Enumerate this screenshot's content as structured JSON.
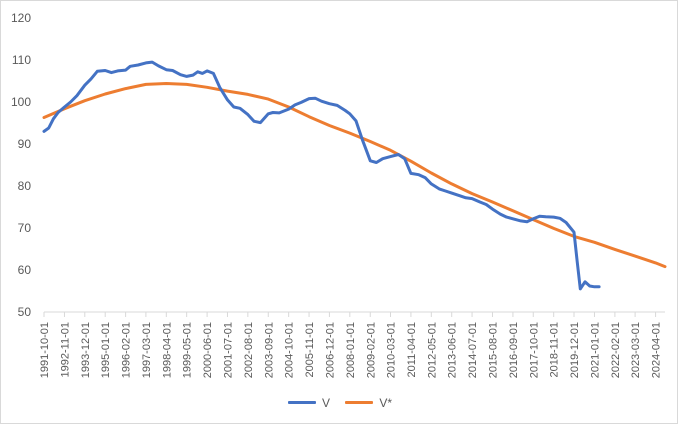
{
  "chart_data": {
    "type": "line",
    "title": "",
    "xlabel": "",
    "ylabel": "",
    "ylim": [
      50,
      120
    ],
    "yticks": [
      50,
      60,
      70,
      80,
      90,
      100,
      110,
      120
    ],
    "grid": false,
    "legend_position": "bottom",
    "x_tick_labels": [
      "1991-10-01",
      "1992-11-01",
      "1993-12-01",
      "1995-01-01",
      "1996-02-01",
      "1997-03-01",
      "1998-04-01",
      "1999-05-01",
      "2000-06-01",
      "2001-07-01",
      "2002-08-01",
      "2003-09-01",
      "2004-10-01",
      "2005-11-01",
      "2006-12-01",
      "2008-01-01",
      "2009-02-01",
      "2010-03-01",
      "2011-04-01",
      "2012-05-01",
      "2013-06-01",
      "2014-07-01",
      "2015-08-01",
      "2016-09-01",
      "2017-10-01",
      "2018-11-01",
      "2019-12-01",
      "2021-01-01",
      "2022-02-01",
      "2023-03-01",
      "2024-04-01"
    ],
    "series": [
      {
        "name": "V",
        "color": "#4472C4",
        "points": [
          [
            "1991-10-01",
            93.0
          ],
          [
            "1992-01-01",
            93.8
          ],
          [
            "1992-04-01",
            96.0
          ],
          [
            "1992-07-01",
            97.5
          ],
          [
            "1992-11-01",
            98.8
          ],
          [
            "1993-03-01",
            100.0
          ],
          [
            "1993-07-01",
            101.5
          ],
          [
            "1993-12-01",
            104.0
          ],
          [
            "1994-04-01",
            105.5
          ],
          [
            "1994-08-01",
            107.3
          ],
          [
            "1995-01-01",
            107.5
          ],
          [
            "1995-05-01",
            107.0
          ],
          [
            "1995-09-01",
            107.4
          ],
          [
            "1996-02-01",
            107.6
          ],
          [
            "1996-05-01",
            108.5
          ],
          [
            "1996-10-01",
            108.8
          ],
          [
            "1997-03-01",
            109.3
          ],
          [
            "1997-07-01",
            109.5
          ],
          [
            "1997-11-01",
            108.6
          ],
          [
            "1998-04-01",
            107.7
          ],
          [
            "1998-08-01",
            107.5
          ],
          [
            "1999-01-01",
            106.5
          ],
          [
            "1999-05-01",
            106.1
          ],
          [
            "1999-09-01",
            106.4
          ],
          [
            "1999-12-01",
            107.2
          ],
          [
            "2000-03-01",
            106.8
          ],
          [
            "2000-06-01",
            107.4
          ],
          [
            "2000-10-01",
            106.8
          ],
          [
            "2001-02-01",
            103.5
          ],
          [
            "2001-07-01",
            100.5
          ],
          [
            "2001-11-01",
            98.8
          ],
          [
            "2002-03-01",
            98.5
          ],
          [
            "2002-08-01",
            97.0
          ],
          [
            "2002-12-01",
            95.4
          ],
          [
            "2003-04-01",
            95.1
          ],
          [
            "2003-09-01",
            97.2
          ],
          [
            "2003-12-01",
            97.5
          ],
          [
            "2004-04-01",
            97.4
          ],
          [
            "2004-10-01",
            98.3
          ],
          [
            "2005-02-01",
            99.3
          ],
          [
            "2005-06-01",
            99.9
          ],
          [
            "2005-11-01",
            100.8
          ],
          [
            "2006-03-01",
            100.9
          ],
          [
            "2006-07-01",
            100.2
          ],
          [
            "2006-12-01",
            99.6
          ],
          [
            "2007-05-01",
            99.2
          ],
          [
            "2007-10-01",
            98.0
          ],
          [
            "2008-01-01",
            97.2
          ],
          [
            "2008-05-01",
            95.5
          ],
          [
            "2008-09-01",
            91.0
          ],
          [
            "2009-02-01",
            86.0
          ],
          [
            "2009-06-01",
            85.6
          ],
          [
            "2009-10-01",
            86.5
          ],
          [
            "2010-03-01",
            87.0
          ],
          [
            "2010-08-01",
            87.5
          ],
          [
            "2010-12-01",
            86.5
          ],
          [
            "2011-04-01",
            83.0
          ],
          [
            "2011-09-01",
            82.7
          ],
          [
            "2012-01-01",
            82.0
          ],
          [
            "2012-05-01",
            80.5
          ],
          [
            "2012-10-01",
            79.3
          ],
          [
            "2013-02-01",
            78.8
          ],
          [
            "2013-06-01",
            78.3
          ],
          [
            "2013-11-01",
            77.7
          ],
          [
            "2014-03-01",
            77.2
          ],
          [
            "2014-07-01",
            77.0
          ],
          [
            "2014-12-01",
            76.2
          ],
          [
            "2015-04-01",
            75.6
          ],
          [
            "2015-08-01",
            74.5
          ],
          [
            "2016-01-01",
            73.3
          ],
          [
            "2016-05-01",
            72.6
          ],
          [
            "2016-09-01",
            72.2
          ],
          [
            "2017-02-01",
            71.7
          ],
          [
            "2017-06-01",
            71.5
          ],
          [
            "2017-10-01",
            72.2
          ],
          [
            "2018-02-01",
            72.8
          ],
          [
            "2018-06-01",
            72.7
          ],
          [
            "2018-11-01",
            72.6
          ],
          [
            "2019-03-01",
            72.3
          ],
          [
            "2019-07-01",
            71.3
          ],
          [
            "2019-12-01",
            69.0
          ],
          [
            "2020-02-01",
            62.0
          ],
          [
            "2020-04-01",
            55.5
          ],
          [
            "2020-07-01",
            57.2
          ],
          [
            "2020-10-01",
            56.2
          ],
          [
            "2021-01-01",
            56.0
          ],
          [
            "2021-04-01",
            56.0
          ]
        ]
      },
      {
        "name": "V*",
        "color": "#ED7D31",
        "points": [
          [
            "1991-10-01",
            96.3
          ],
          [
            "1992-11-01",
            98.4
          ],
          [
            "1993-12-01",
            100.3
          ],
          [
            "1995-01-01",
            101.9
          ],
          [
            "1996-02-01",
            103.2
          ],
          [
            "1997-03-01",
            104.2
          ],
          [
            "1998-04-01",
            104.4
          ],
          [
            "1999-05-01",
            104.2
          ],
          [
            "2000-06-01",
            103.5
          ],
          [
            "2001-07-01",
            102.6
          ],
          [
            "2002-08-01",
            101.8
          ],
          [
            "2003-09-01",
            100.7
          ],
          [
            "2004-10-01",
            98.8
          ],
          [
            "2005-11-01",
            96.5
          ],
          [
            "2006-12-01",
            94.4
          ],
          [
            "2008-01-01",
            92.6
          ],
          [
            "2009-02-01",
            90.6
          ],
          [
            "2010-03-01",
            88.5
          ],
          [
            "2011-04-01",
            85.9
          ],
          [
            "2012-05-01",
            83.1
          ],
          [
            "2013-06-01",
            80.5
          ],
          [
            "2014-07-01",
            78.2
          ],
          [
            "2015-08-01",
            76.2
          ],
          [
            "2016-09-01",
            74.1
          ],
          [
            "2017-10-01",
            72.0
          ],
          [
            "2018-11-01",
            69.9
          ],
          [
            "2019-12-01",
            68.0
          ],
          [
            "2021-01-01",
            66.6
          ],
          [
            "2022-02-01",
            64.9
          ],
          [
            "2023-03-01",
            63.3
          ],
          [
            "2024-04-01",
            61.7
          ],
          [
            "2024-10-01",
            60.8
          ]
        ]
      }
    ]
  }
}
